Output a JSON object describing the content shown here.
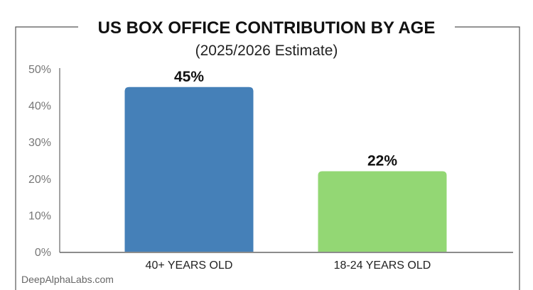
{
  "chart_data": {
    "type": "bar",
    "title": "US BOX OFFICE CONTRIBUTION BY AGE",
    "subtitle": "(2025/2026 Estimate)",
    "categories": [
      "40+ YEARS OLD",
      "18-24 YEARS OLD"
    ],
    "values": [
      45,
      22
    ],
    "data_labels": [
      "45%",
      "22%"
    ],
    "colors": [
      "#4580b8",
      "#93d774"
    ],
    "ylim": [
      0,
      50
    ],
    "yticks": [
      "0%",
      "10%",
      "20%",
      "30%",
      "40%",
      "50%"
    ],
    "grid": false,
    "xlabel": "",
    "ylabel": ""
  },
  "watermark": "DeepAlphaLabs.com"
}
